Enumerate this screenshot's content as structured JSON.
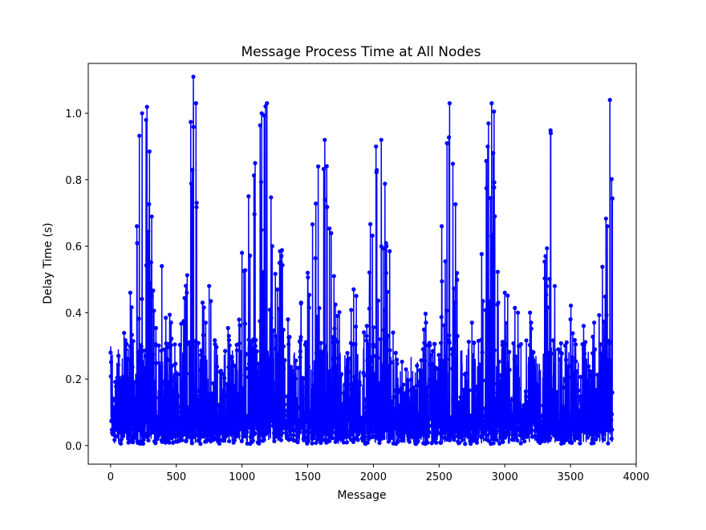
{
  "chart_data": {
    "type": "line",
    "title": "Message Process Time at All Nodes",
    "xlabel": "Message",
    "ylabel": "Delay Time (s)",
    "xlim": [
      -170,
      4000
    ],
    "ylim": [
      -0.056,
      1.15
    ],
    "xticks": [
      0,
      500,
      1000,
      1500,
      2000,
      2500,
      3000,
      3500,
      4000
    ],
    "yticks": [
      0.0,
      0.2,
      0.4,
      0.6,
      0.8,
      1.0
    ],
    "ytick_labels": [
      "0.0",
      "0.2",
      "0.4",
      "0.6",
      "0.8",
      "1.0"
    ],
    "series_color": "#0000ff",
    "marker": "circle",
    "n_points": 3820,
    "grid": false,
    "legend": "none",
    "peaks": [
      {
        "x": 0,
        "y": 0.28
      },
      {
        "x": 60,
        "y": 0.27
      },
      {
        "x": 150,
        "y": 0.46
      },
      {
        "x": 200,
        "y": 0.66
      },
      {
        "x": 240,
        "y": 1.0
      },
      {
        "x": 270,
        "y": 0.98
      },
      {
        "x": 300,
        "y": 0.43
      },
      {
        "x": 390,
        "y": 0.54
      },
      {
        "x": 460,
        "y": 0.37
      },
      {
        "x": 580,
        "y": 0.46
      },
      {
        "x": 630,
        "y": 1.11
      },
      {
        "x": 650,
        "y": 1.03
      },
      {
        "x": 700,
        "y": 0.43
      },
      {
        "x": 750,
        "y": 0.48
      },
      {
        "x": 900,
        "y": 0.33
      },
      {
        "x": 1000,
        "y": 0.58
      },
      {
        "x": 1050,
        "y": 0.75
      },
      {
        "x": 1100,
        "y": 0.85
      },
      {
        "x": 1150,
        "y": 1.0
      },
      {
        "x": 1190,
        "y": 1.03
      },
      {
        "x": 1230,
        "y": 0.6
      },
      {
        "x": 1300,
        "y": 0.57
      },
      {
        "x": 1450,
        "y": 0.43
      },
      {
        "x": 1500,
        "y": 0.52
      },
      {
        "x": 1580,
        "y": 0.84
      },
      {
        "x": 1630,
        "y": 0.92
      },
      {
        "x": 1700,
        "y": 0.51
      },
      {
        "x": 1850,
        "y": 0.47
      },
      {
        "x": 1950,
        "y": 0.36
      },
      {
        "x": 2020,
        "y": 0.9
      },
      {
        "x": 2060,
        "y": 0.92
      },
      {
        "x": 2100,
        "y": 0.6
      },
      {
        "x": 2150,
        "y": 0.34
      },
      {
        "x": 2400,
        "y": 0.37
      },
      {
        "x": 2520,
        "y": 0.66
      },
      {
        "x": 2560,
        "y": 0.91
      },
      {
        "x": 2580,
        "y": 1.03
      },
      {
        "x": 2620,
        "y": 0.43
      },
      {
        "x": 2750,
        "y": 0.37
      },
      {
        "x": 2870,
        "y": 0.9
      },
      {
        "x": 2900,
        "y": 1.03
      },
      {
        "x": 2950,
        "y": 0.43
      },
      {
        "x": 3000,
        "y": 0.46
      },
      {
        "x": 3100,
        "y": 0.4
      },
      {
        "x": 3200,
        "y": 0.37
      },
      {
        "x": 3310,
        "y": 0.57
      },
      {
        "x": 3350,
        "y": 0.94
      },
      {
        "x": 3380,
        "y": 0.48
      },
      {
        "x": 3500,
        "y": 0.38
      },
      {
        "x": 3600,
        "y": 0.36
      },
      {
        "x": 3680,
        "y": 0.37
      },
      {
        "x": 3780,
        "y": 0.66
      },
      {
        "x": 3800,
        "y": 1.04
      }
    ],
    "baseline_range": [
      0.0,
      0.3
    ]
  }
}
